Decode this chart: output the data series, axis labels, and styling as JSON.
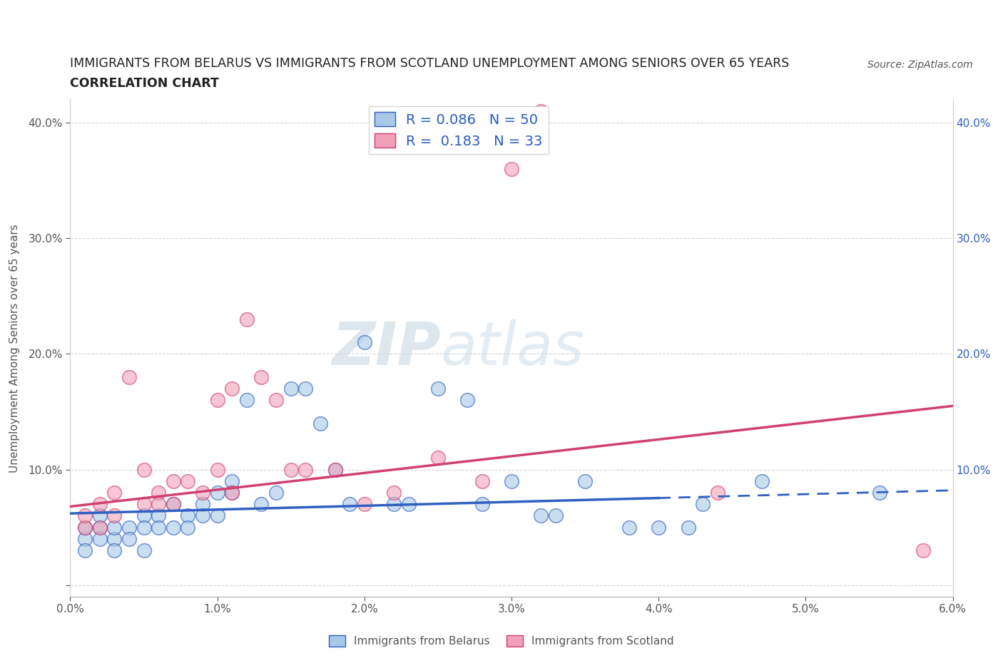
{
  "title_line1": "IMMIGRANTS FROM BELARUS VS IMMIGRANTS FROM SCOTLAND UNEMPLOYMENT AMONG SENIORS OVER 65 YEARS",
  "title_line2": "CORRELATION CHART",
  "source": "Source: ZipAtlas.com",
  "ylabel": "Unemployment Among Seniors over 65 years",
  "xlim": [
    0.0,
    0.06
  ],
  "ylim": [
    -0.01,
    0.42
  ],
  "xticks": [
    0.0,
    0.01,
    0.02,
    0.03,
    0.04,
    0.05,
    0.06
  ],
  "xticklabels": [
    "0.0%",
    "1.0%",
    "2.0%",
    "3.0%",
    "4.0%",
    "5.0%",
    "6.0%"
  ],
  "yticks": [
    0.0,
    0.1,
    0.2,
    0.3,
    0.4
  ],
  "yticklabels": [
    "",
    "10.0%",
    "20.0%",
    "30.0%",
    "40.0%"
  ],
  "R_belarus": 0.086,
  "N_belarus": 50,
  "R_scotland": 0.183,
  "N_scotland": 33,
  "color_belarus": "#a8c8e8",
  "color_scotland": "#f0a0b8",
  "color_trendline_belarus": "#3060c0",
  "color_trendline_scotland": "#d04070",
  "watermark_zip": "ZIP",
  "watermark_atlas": "atlas",
  "belarus_x": [
    0.001,
    0.001,
    0.001,
    0.002,
    0.002,
    0.002,
    0.003,
    0.003,
    0.003,
    0.004,
    0.004,
    0.005,
    0.005,
    0.005,
    0.006,
    0.006,
    0.007,
    0.007,
    0.008,
    0.008,
    0.009,
    0.009,
    0.01,
    0.01,
    0.011,
    0.011,
    0.012,
    0.013,
    0.014,
    0.015,
    0.016,
    0.017,
    0.018,
    0.019,
    0.02,
    0.022,
    0.023,
    0.025,
    0.027,
    0.028,
    0.03,
    0.032,
    0.033,
    0.035,
    0.038,
    0.04,
    0.042,
    0.043,
    0.047,
    0.055
  ],
  "belarus_y": [
    0.04,
    0.05,
    0.03,
    0.05,
    0.04,
    0.06,
    0.04,
    0.05,
    0.03,
    0.05,
    0.04,
    0.06,
    0.05,
    0.03,
    0.06,
    0.05,
    0.07,
    0.05,
    0.06,
    0.05,
    0.07,
    0.06,
    0.08,
    0.06,
    0.09,
    0.08,
    0.16,
    0.07,
    0.08,
    0.17,
    0.17,
    0.14,
    0.1,
    0.07,
    0.21,
    0.07,
    0.07,
    0.17,
    0.16,
    0.07,
    0.09,
    0.06,
    0.06,
    0.09,
    0.05,
    0.05,
    0.05,
    0.07,
    0.09,
    0.08
  ],
  "scotland_x": [
    0.001,
    0.001,
    0.002,
    0.002,
    0.003,
    0.003,
    0.004,
    0.005,
    0.005,
    0.006,
    0.006,
    0.007,
    0.007,
    0.008,
    0.009,
    0.01,
    0.01,
    0.011,
    0.011,
    0.012,
    0.013,
    0.014,
    0.015,
    0.016,
    0.018,
    0.02,
    0.022,
    0.025,
    0.028,
    0.03,
    0.032,
    0.044,
    0.058
  ],
  "scotland_y": [
    0.05,
    0.06,
    0.05,
    0.07,
    0.06,
    0.08,
    0.18,
    0.07,
    0.1,
    0.08,
    0.07,
    0.09,
    0.07,
    0.09,
    0.08,
    0.1,
    0.16,
    0.17,
    0.08,
    0.23,
    0.18,
    0.16,
    0.1,
    0.1,
    0.1,
    0.07,
    0.08,
    0.11,
    0.09,
    0.36,
    0.41,
    0.08,
    0.03
  ],
  "trendline_belarus_x0": 0.0,
  "trendline_belarus_x_solid_end": 0.04,
  "trendline_belarus_x1": 0.06,
  "trendline_belarus_y0": 0.062,
  "trendline_belarus_y1": 0.082,
  "trendline_scotland_x0": 0.0,
  "trendline_scotland_x1": 0.06,
  "trendline_scotland_y0": 0.068,
  "trendline_scotland_y1": 0.155
}
